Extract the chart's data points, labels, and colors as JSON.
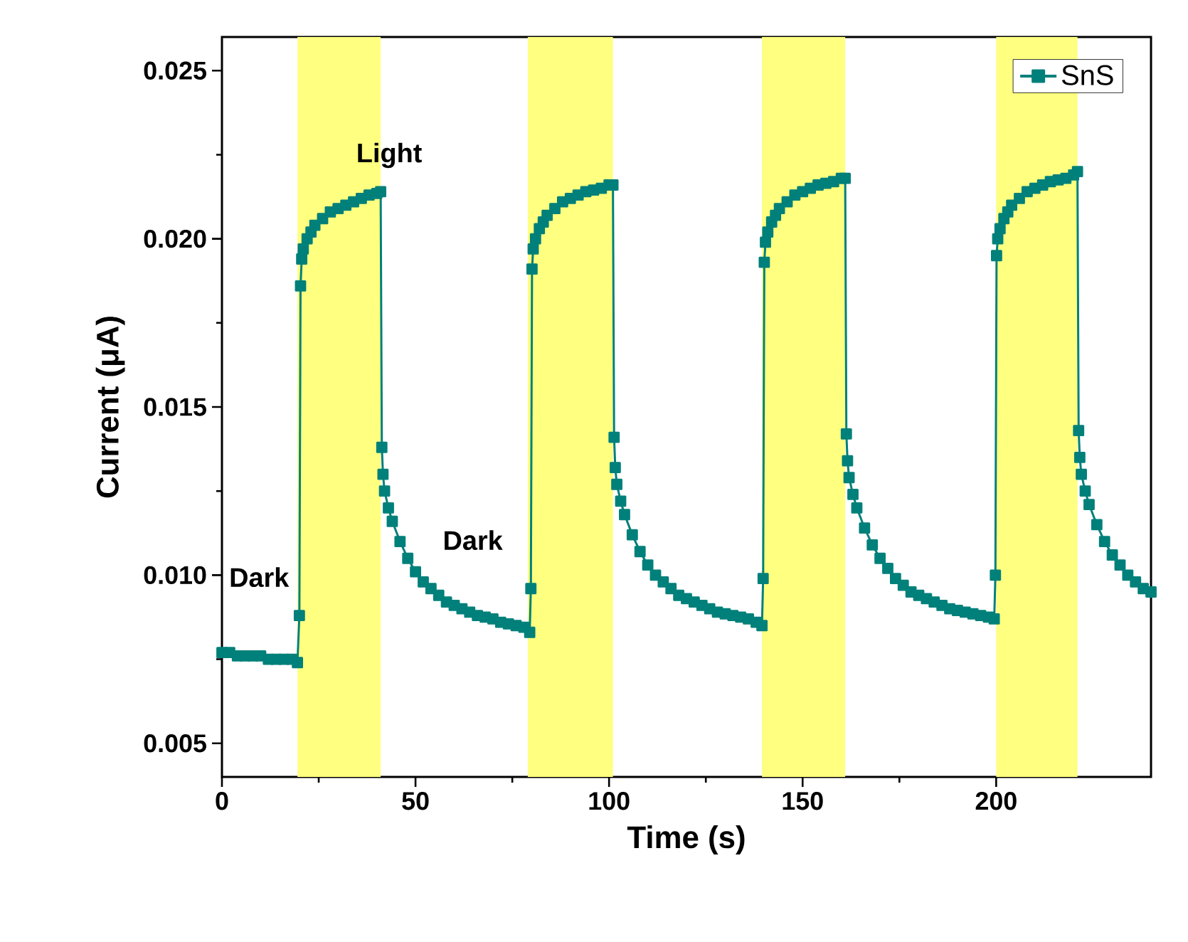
{
  "chart_data": {
    "type": "line",
    "xlabel": "Time (s)",
    "ylabel": "Current (μA)",
    "xlim": [
      0,
      240
    ],
    "ylim": [
      0.004,
      0.026
    ],
    "xticks": [
      0,
      50,
      100,
      150,
      200
    ],
    "yticks": [
      0.005,
      {
        "value": 0.01,
        "label": "0.010"
      },
      0.015,
      {
        "value": 0.02,
        "label": "0.020"
      },
      0.025
    ],
    "legend": "top right",
    "marker": "square",
    "line_style": "solid",
    "series": [
      {
        "name": "SnS",
        "color": "#00807a",
        "x": [
          0,
          2,
          4,
          6,
          8,
          10,
          12,
          14,
          16,
          18,
          19.5,
          20,
          20.3,
          20.6,
          21,
          22,
          23,
          24,
          26,
          28,
          30,
          32,
          34,
          36,
          38,
          40,
          41,
          41.3,
          41.6,
          42,
          43,
          44,
          46,
          48,
          50,
          52,
          54,
          56,
          58,
          60,
          62,
          64,
          66,
          68,
          70,
          72,
          74,
          76,
          78,
          79.5,
          79.8,
          80.1,
          80.4,
          81,
          82,
          83,
          84,
          86,
          88,
          90,
          92,
          94,
          96,
          98,
          100,
          101,
          101.3,
          101.6,
          102,
          103,
          104,
          106,
          108,
          110,
          112,
          114,
          116,
          118,
          120,
          122,
          124,
          126,
          128,
          130,
          132,
          134,
          136,
          138,
          139.5,
          139.8,
          140.1,
          140.4,
          141,
          142,
          143,
          144,
          146,
          148,
          150,
          152,
          154,
          156,
          158,
          160,
          161,
          161.3,
          161.6,
          162,
          163,
          164,
          166,
          168,
          170,
          172,
          174,
          176,
          178,
          180,
          182,
          184,
          186,
          188,
          190,
          192,
          194,
          196,
          198,
          199.5,
          199.8,
          200.1,
          200.4,
          201,
          202,
          203,
          204,
          206,
          208,
          210,
          212,
          214,
          216,
          218,
          220,
          221,
          221.3,
          221.6,
          222,
          223,
          224,
          226,
          228,
          230,
          232,
          234,
          236,
          238,
          240
        ],
        "values": [
          0.0077,
          0.0077,
          0.0076,
          0.0076,
          0.0076,
          0.0076,
          0.0075,
          0.0075,
          0.0075,
          0.0075,
          0.0074,
          0.0088,
          0.0186,
          0.0194,
          0.0197,
          0.02,
          0.0202,
          0.0204,
          0.0206,
          0.0208,
          0.0209,
          0.021,
          0.0211,
          0.0212,
          0.0213,
          0.02135,
          0.0214,
          0.0138,
          0.013,
          0.0125,
          0.012,
          0.0116,
          0.011,
          0.0105,
          0.0101,
          0.0098,
          0.0096,
          0.0094,
          0.0092,
          0.0091,
          0.009,
          0.0089,
          0.0088,
          0.00875,
          0.0087,
          0.0086,
          0.00855,
          0.0085,
          0.00845,
          0.0083,
          0.0096,
          0.0191,
          0.0197,
          0.02,
          0.0203,
          0.0205,
          0.0207,
          0.0209,
          0.0211,
          0.0212,
          0.0213,
          0.0214,
          0.02145,
          0.0215,
          0.0216,
          0.0216,
          0.0141,
          0.0132,
          0.0127,
          0.0122,
          0.0118,
          0.0112,
          0.0107,
          0.0103,
          0.01,
          0.0098,
          0.0096,
          0.0094,
          0.0093,
          0.0092,
          0.0091,
          0.009,
          0.0089,
          0.00885,
          0.0088,
          0.00875,
          0.0087,
          0.0086,
          0.0085,
          0.0099,
          0.0193,
          0.0199,
          0.0202,
          0.0205,
          0.0207,
          0.0209,
          0.0211,
          0.0213,
          0.0214,
          0.0215,
          0.0216,
          0.02165,
          0.0217,
          0.0218,
          0.0218,
          0.0142,
          0.0134,
          0.0129,
          0.0124,
          0.012,
          0.0114,
          0.0109,
          0.0105,
          0.0102,
          0.0099,
          0.0097,
          0.0095,
          0.0094,
          0.0093,
          0.0092,
          0.0091,
          0.009,
          0.00895,
          0.0089,
          0.00885,
          0.0088,
          0.00875,
          0.0087,
          0.01,
          0.0195,
          0.02,
          0.0203,
          0.0206,
          0.0208,
          0.021,
          0.0212,
          0.0214,
          0.0215,
          0.0216,
          0.0217,
          0.02175,
          0.0218,
          0.0219,
          0.022,
          0.0143,
          0.0135,
          0.013,
          0.0125,
          0.0121,
          0.0115,
          0.011,
          0.0106,
          0.0103,
          0.01,
          0.0098,
          0.0096,
          0.0095
        ]
      }
    ],
    "bands": [
      {
        "axis": "x",
        "from": 19.5,
        "to": 41,
        "color": "#ffff80"
      },
      {
        "axis": "x",
        "from": 79,
        "to": 101,
        "color": "#ffff80"
      },
      {
        "axis": "x",
        "from": 139.5,
        "to": 161,
        "color": "#ffff80"
      },
      {
        "axis": "x",
        "from": 200,
        "to": 221,
        "color": "#ffff80"
      }
    ],
    "annotations": [
      "Light",
      "Dark",
      "Dark"
    ]
  }
}
